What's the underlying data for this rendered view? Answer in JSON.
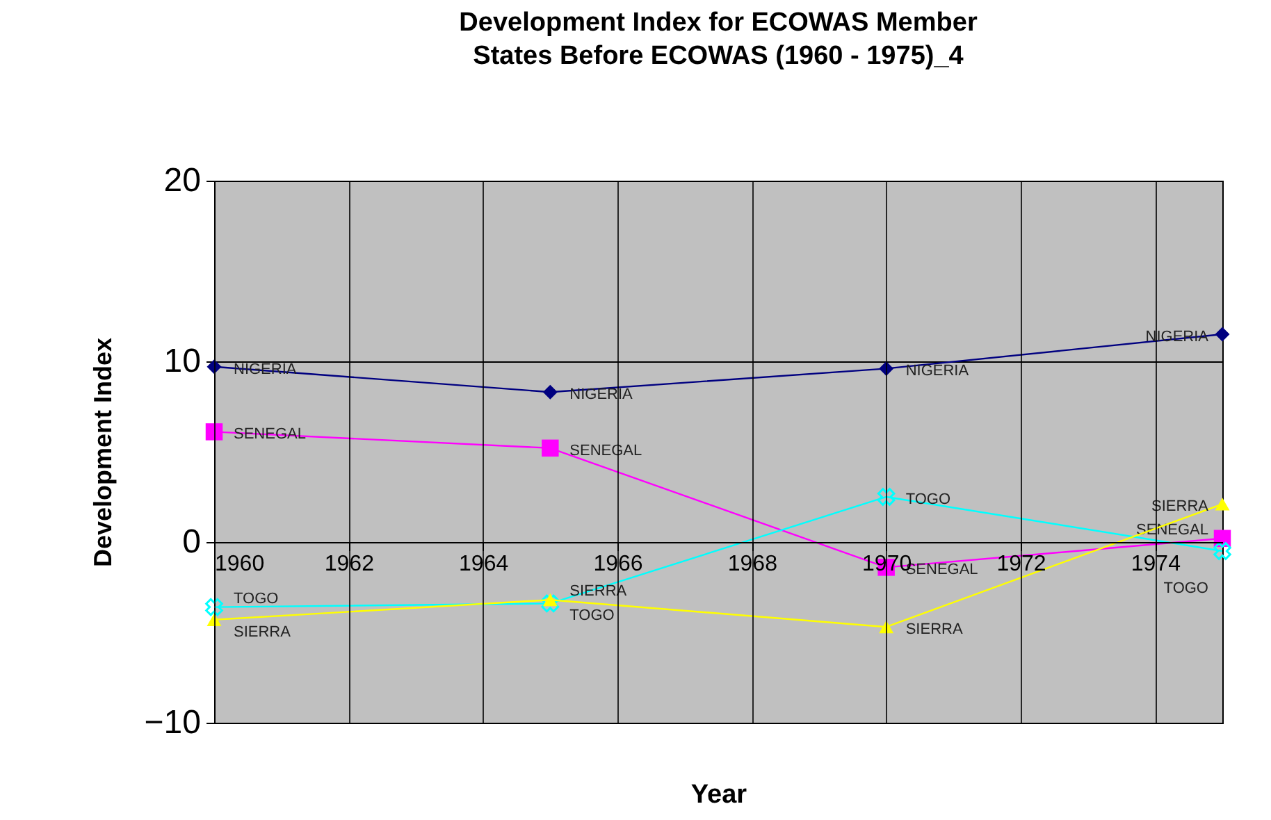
{
  "chart_data": {
    "type": "line",
    "title": "Development Index for ECOWAS Member States Before ECOWAS (1960 - 1975)_4",
    "xlabel": "Year",
    "ylabel": "Development Index",
    "x": [
      1960,
      1965,
      1970,
      1975
    ],
    "series": [
      {
        "name": "NIGERIA",
        "color": "#000080",
        "marker": "diamond",
        "values": [
          9.7,
          8.3,
          9.6,
          11.5
        ]
      },
      {
        "name": "SENEGAL",
        "color": "#ff00ff",
        "marker": "square",
        "values": [
          6.1,
          5.2,
          -1.4,
          0.2
        ]
      },
      {
        "name": "TOGO",
        "color": "#00ffff",
        "marker": "cross",
        "values": [
          -3.6,
          -3.4,
          2.5,
          -0.5
        ]
      },
      {
        "name": "SIERRA",
        "color": "#ffff00",
        "marker": "triangle",
        "values": [
          -4.3,
          -3.2,
          -4.7,
          2.1
        ]
      }
    ],
    "xlim": [
      1960,
      1975
    ],
    "xticks": [
      1960,
      1962,
      1964,
      1966,
      1968,
      1970,
      1972,
      1974
    ],
    "ylim": [
      -10,
      20
    ],
    "yticks": [
      -10,
      0,
      10,
      20
    ],
    "grid": true,
    "line_style": "solid"
  }
}
